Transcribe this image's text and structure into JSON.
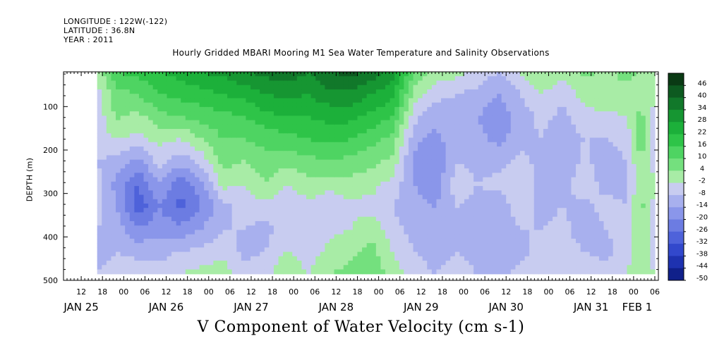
{
  "header": {
    "longitude": "LONGITUDE : 122W(-122)",
    "latitude": "LATITUDE : 36.8N",
    "year": "YEAR : 2011"
  },
  "chart_data": {
    "type": "heatmap",
    "title": "Hourly Gridded MBARI Mooring M1 Sea Water Temperature and Salinity Observations",
    "xlabel": "V Component of Water Velocity (cm s-1)",
    "ylabel": "DEPTH (m)",
    "x_domain_hours_from_jan25_00": [
      7,
      175
    ],
    "data_extent_hours_from_jan25_00": [
      16.5,
      174
    ],
    "ylim": [
      500,
      20
    ],
    "data_depth_range": [
      20,
      485
    ],
    "y_ticks": [
      {
        "value": 100,
        "label": "100"
      },
      {
        "value": 200,
        "label": "200"
      },
      {
        "value": 300,
        "label": "300"
      },
      {
        "value": 400,
        "label": "400"
      },
      {
        "value": 500,
        "label": "500"
      }
    ],
    "x_hour_ticks": [
      {
        "t": 12,
        "label": "12"
      },
      {
        "t": 18,
        "label": "18"
      },
      {
        "t": 24,
        "label": "00"
      },
      {
        "t": 30,
        "label": "06"
      },
      {
        "t": 36,
        "label": "12"
      },
      {
        "t": 42,
        "label": "18"
      },
      {
        "t": 48,
        "label": "00"
      },
      {
        "t": 54,
        "label": "06"
      },
      {
        "t": 60,
        "label": "12"
      },
      {
        "t": 66,
        "label": "18"
      },
      {
        "t": 72,
        "label": "00"
      },
      {
        "t": 78,
        "label": "06"
      },
      {
        "t": 84,
        "label": "12"
      },
      {
        "t": 90,
        "label": "18"
      },
      {
        "t": 96,
        "label": "00"
      },
      {
        "t": 102,
        "label": "06"
      },
      {
        "t": 108,
        "label": "12"
      },
      {
        "t": 114,
        "label": "18"
      },
      {
        "t": 120,
        "label": "00"
      },
      {
        "t": 126,
        "label": "06"
      },
      {
        "t": 132,
        "label": "12"
      },
      {
        "t": 138,
        "label": "18"
      },
      {
        "t": 144,
        "label": "00"
      },
      {
        "t": 150,
        "label": "06"
      },
      {
        "t": 156,
        "label": "12"
      },
      {
        "t": 162,
        "label": "18"
      },
      {
        "t": 168,
        "label": "00"
      },
      {
        "t": 174,
        "label": "06"
      }
    ],
    "x_date_labels": [
      {
        "t": 12,
        "label": "JAN 25"
      },
      {
        "t": 36,
        "label": "JAN 26"
      },
      {
        "t": 60,
        "label": "JAN 27"
      },
      {
        "t": 84,
        "label": "JAN 28"
      },
      {
        "t": 108,
        "label": "JAN 29"
      },
      {
        "t": 132,
        "label": "JAN 30"
      },
      {
        "t": 156,
        "label": "JAN 31"
      },
      {
        "t": 180,
        "label": "FEB  1"
      }
    ],
    "colorbar": {
      "levels": [
        48,
        46,
        40,
        34,
        28,
        22,
        16,
        10,
        4,
        -2,
        -8,
        -14,
        -20,
        -26,
        -32,
        -38,
        -44,
        -50
      ],
      "labels": [
        "46",
        "40",
        "34",
        "28",
        "22",
        "16",
        "10",
        "4",
        "-2",
        "-8",
        "-14",
        "-20",
        "-26",
        "-32",
        "-38",
        "-44",
        "-50"
      ],
      "colors": [
        "#0a3a14",
        "#0d5a20",
        "#11782a",
        "#169632",
        "#1cb03a",
        "#2ec448",
        "#4ed462",
        "#74e07e",
        "#a8eca6",
        "#c8ccf0",
        "#a8b0ee",
        "#8a96ea",
        "#6c7ce2",
        "#4e62da",
        "#3248cc",
        "#1e32b0",
        "#10208a"
      ]
    },
    "columns": [
      {
        "t": 16.5,
        "v": [
          0,
          -5,
          -6,
          -4,
          -8,
          -6,
          -5,
          -8,
          -10,
          -8
        ]
      },
      {
        "t": 22,
        "v": [
          16,
          8,
          5,
          -2,
          -10,
          -16,
          -14,
          -10,
          -8,
          -6
        ]
      },
      {
        "t": 28,
        "v": [
          18,
          10,
          2,
          -4,
          -16,
          -26,
          -30,
          -20,
          -10,
          -4
        ]
      },
      {
        "t": 34,
        "v": [
          22,
          16,
          8,
          0,
          -6,
          -14,
          -20,
          -16,
          -10,
          -6
        ]
      },
      {
        "t": 40,
        "v": [
          24,
          18,
          10,
          -2,
          -12,
          -24,
          -28,
          -18,
          -8,
          -2
        ]
      },
      {
        "t": 46,
        "v": [
          28,
          20,
          12,
          4,
          -6,
          -16,
          -20,
          -14,
          -6,
          0
        ]
      },
      {
        "t": 52,
        "v": [
          30,
          22,
          14,
          10,
          6,
          0,
          -10,
          -8,
          -4,
          2
        ]
      },
      {
        "t": 58,
        "v": [
          34,
          24,
          16,
          10,
          4,
          -2,
          -6,
          -8,
          -10,
          -6
        ]
      },
      {
        "t": 64,
        "v": [
          36,
          28,
          20,
          12,
          8,
          4,
          -4,
          -10,
          -8,
          -4
        ]
      },
      {
        "t": 70,
        "v": [
          38,
          30,
          22,
          14,
          6,
          -2,
          -8,
          -6,
          -2,
          4
        ]
      },
      {
        "t": 76,
        "v": [
          34,
          28,
          22,
          16,
          8,
          2,
          -4,
          -6,
          -6,
          -2
        ]
      },
      {
        "t": 82,
        "v": [
          40,
          32,
          24,
          18,
          10,
          0,
          -6,
          -4,
          0,
          4
        ]
      },
      {
        "t": 88,
        "v": [
          42,
          32,
          24,
          16,
          8,
          2,
          -4,
          -2,
          2,
          6
        ]
      },
      {
        "t": 94,
        "v": [
          38,
          28,
          20,
          12,
          6,
          0,
          -4,
          2,
          6,
          8
        ]
      },
      {
        "t": 100,
        "v": [
          30,
          24,
          16,
          8,
          2,
          -4,
          -8,
          -6,
          -2,
          2
        ]
      },
      {
        "t": 106,
        "v": [
          10,
          2,
          -6,
          -12,
          -16,
          -14,
          -12,
          -10,
          -8,
          -6
        ]
      },
      {
        "t": 112,
        "v": [
          2,
          -6,
          -12,
          -16,
          -20,
          -18,
          -14,
          -12,
          -10,
          -8
        ]
      },
      {
        "t": 118,
        "v": [
          0,
          -8,
          -12,
          -10,
          -8,
          -4,
          -8,
          -10,
          -8,
          -6
        ]
      },
      {
        "t": 124,
        "v": [
          -4,
          -10,
          -14,
          -12,
          -10,
          -8,
          -10,
          -12,
          -10,
          -8
        ]
      },
      {
        "t": 130,
        "v": [
          -8,
          -14,
          -18,
          -16,
          -10,
          -6,
          -12,
          -14,
          -12,
          -10
        ]
      },
      {
        "t": 136,
        "v": [
          -2,
          -8,
          -12,
          -10,
          -6,
          -2,
          -4,
          -8,
          -10,
          -6
        ]
      },
      {
        "t": 142,
        "v": [
          4,
          -2,
          -6,
          -8,
          -10,
          -12,
          -10,
          -8,
          -6,
          -4
        ]
      },
      {
        "t": 148,
        "v": [
          0,
          -6,
          -10,
          -12,
          -14,
          -10,
          -8,
          -6,
          -4,
          -2
        ]
      },
      {
        "t": 154,
        "v": [
          6,
          0,
          -4,
          -8,
          -6,
          -4,
          -10,
          -12,
          -8,
          -4
        ]
      },
      {
        "t": 160,
        "v": [
          2,
          4,
          -4,
          -8,
          -12,
          -10,
          -6,
          -8,
          -10,
          -6
        ]
      },
      {
        "t": 166,
        "v": [
          6,
          2,
          -2,
          -6,
          -8,
          -10,
          -8,
          -6,
          -4,
          -2
        ]
      },
      {
        "t": 170,
        "v": [
          4,
          0,
          6,
          8,
          4,
          2,
          6,
          4,
          2,
          0
        ]
      },
      {
        "t": 174,
        "v": [
          2,
          -2,
          -4,
          -6,
          -4,
          -2,
          -4,
          -6,
          -4,
          -2
        ]
      }
    ]
  }
}
